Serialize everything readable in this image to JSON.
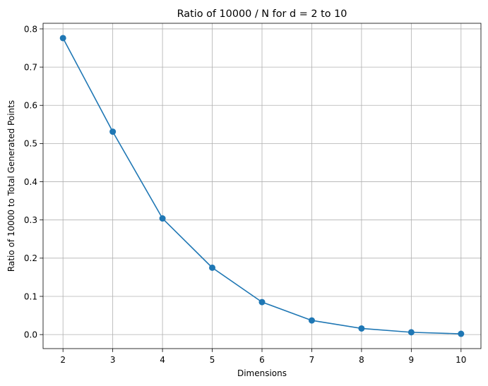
{
  "chart_data": {
    "type": "line",
    "title": "Ratio of 10000 / N for d = 2 to 10",
    "xlabel": "Dimensions",
    "ylabel": "Ratio of 10000 to Total Generated Points",
    "x": [
      2,
      3,
      4,
      5,
      6,
      7,
      8,
      9,
      10
    ],
    "series": [
      {
        "values": [
          0.776,
          0.531,
          0.304,
          0.175,
          0.085,
          0.037,
          0.016,
          0.006,
          0.002
        ],
        "color": "#1f77b4",
        "marker": "circle"
      }
    ],
    "xticks": [
      "2",
      "3",
      "4",
      "5",
      "6",
      "7",
      "8",
      "9",
      "10"
    ],
    "yticks": [
      "0.0",
      "0.1",
      "0.2",
      "0.3",
      "0.4",
      "0.5",
      "0.6",
      "0.7",
      "0.8"
    ],
    "xlim": [
      1.6,
      10.4
    ],
    "ylim": [
      -0.0367,
      0.8147
    ],
    "grid": true
  }
}
